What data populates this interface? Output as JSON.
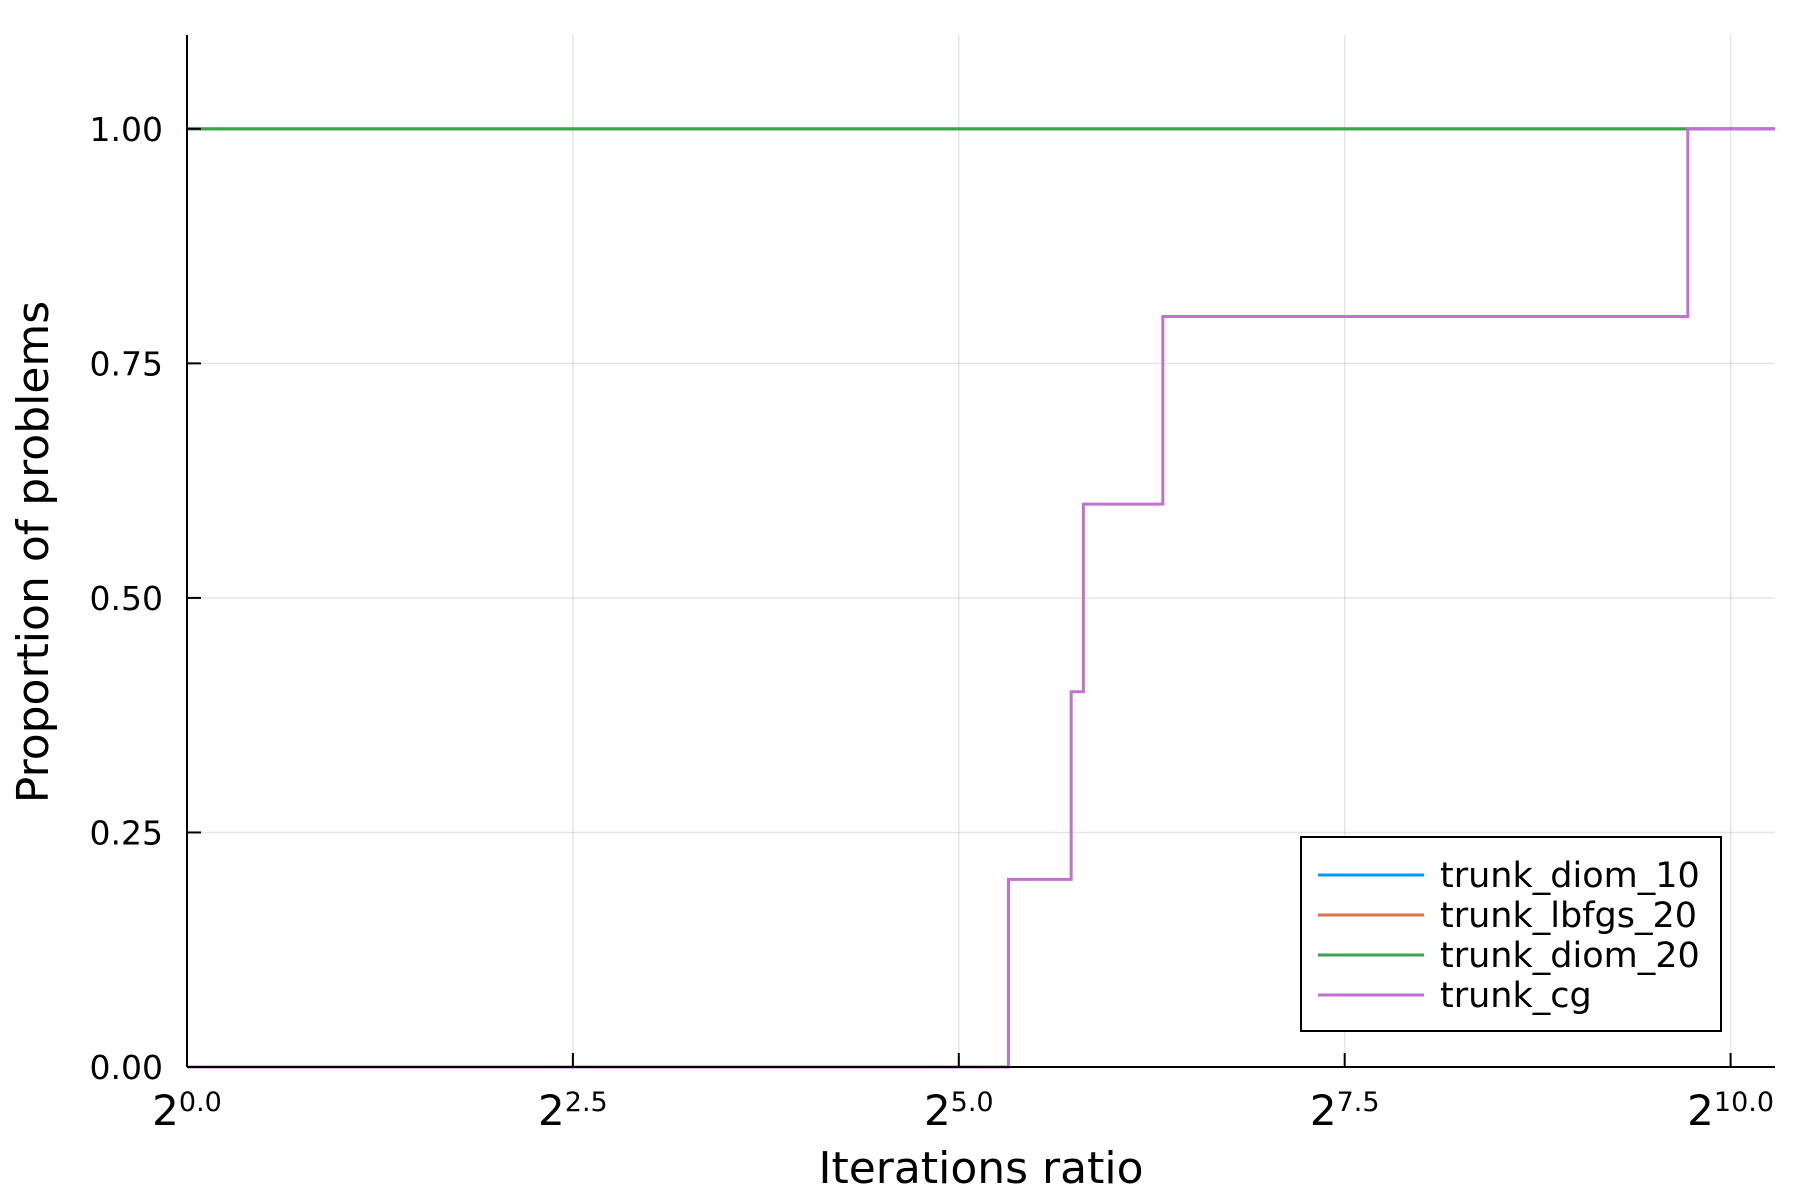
{
  "chart_data": {
    "type": "line",
    "step": true,
    "xlabel": "Iterations ratio",
    "ylabel": "Proportion of problems",
    "x_scale": "log2",
    "xlim": [
      1,
      1250
    ],
    "ylim": [
      0,
      1.1
    ],
    "x_ticks": [
      {
        "value": 1,
        "base": "2",
        "exp": "0.0"
      },
      {
        "value": 5.657,
        "base": "2",
        "exp": "2.5"
      },
      {
        "value": 32,
        "base": "2",
        "exp": "5.0"
      },
      {
        "value": 181.02,
        "base": "2",
        "exp": "7.5"
      },
      {
        "value": 1024,
        "base": "2",
        "exp": "10.0"
      }
    ],
    "y_ticks": [
      {
        "value": 0,
        "label": "0.00"
      },
      {
        "value": 0.25,
        "label": "0.25"
      },
      {
        "value": 0.5,
        "label": "0.50"
      },
      {
        "value": 0.75,
        "label": "0.75"
      },
      {
        "value": 1,
        "label": "1.00"
      }
    ],
    "grid": true,
    "legend_position": "bottom-right",
    "series": [
      {
        "name": "trunk_diom_10",
        "color": "#009af9",
        "x": [
          1,
          1250
        ],
        "y": [
          1,
          1
        ]
      },
      {
        "name": "trunk_lbfgs_20",
        "color": "#e26f46",
        "x": [
          1,
          1250
        ],
        "y": [
          1,
          1
        ]
      },
      {
        "name": "trunk_diom_20",
        "color": "#3da44d",
        "x": [
          1,
          1250
        ],
        "y": [
          1,
          1
        ]
      },
      {
        "name": "trunk_cg",
        "color": "#c271d2",
        "x": [
          1,
          40,
          53,
          56,
          80,
          845,
          1250
        ],
        "y": [
          0,
          0.2,
          0.4,
          0.6,
          0.8,
          1.0,
          1.0
        ]
      }
    ]
  }
}
